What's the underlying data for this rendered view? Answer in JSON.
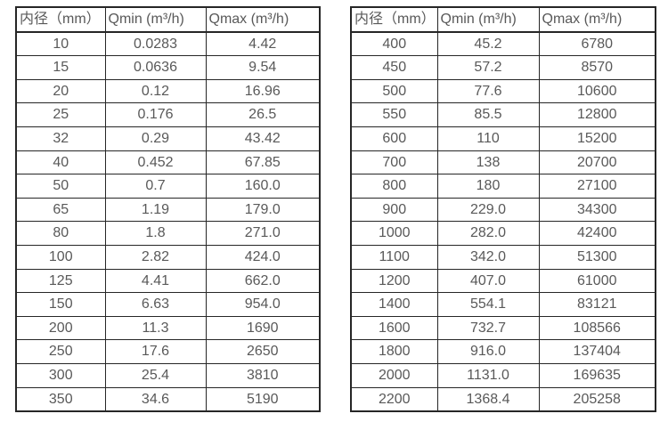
{
  "page": {
    "background_color": "#ffffff",
    "text_color": "#595959",
    "border_color": "#262626"
  },
  "tables": [
    {
      "name": "flow-spec-table-small-diameters",
      "headers": [
        "内径（mm）",
        "Qmin (m³/h)",
        "Qmax (m³/h)"
      ],
      "rows": [
        [
          "10",
          "0.0283",
          "4.42"
        ],
        [
          "15",
          "0.0636",
          "9.54"
        ],
        [
          "20",
          "0.12",
          "16.96"
        ],
        [
          "25",
          "0.176",
          "26.5"
        ],
        [
          "32",
          "0.29",
          "43.42"
        ],
        [
          "40",
          "0.452",
          "67.85"
        ],
        [
          "50",
          "0.7",
          "160.0"
        ],
        [
          "65",
          "1.19",
          "179.0"
        ],
        [
          "80",
          "1.8",
          "271.0"
        ],
        [
          "100",
          "2.82",
          "424.0"
        ],
        [
          "125",
          "4.41",
          "662.0"
        ],
        [
          "150",
          "6.63",
          "954.0"
        ],
        [
          "200",
          "11.3",
          "1690"
        ],
        [
          "250",
          "17.6",
          "2650"
        ],
        [
          "300",
          "25.4",
          "3810"
        ],
        [
          "350",
          "34.6",
          "5190"
        ]
      ]
    },
    {
      "name": "flow-spec-table-large-diameters",
      "headers": [
        "内径（mm）",
        "Qmin (m³/h)",
        "Qmax (m³/h)"
      ],
      "rows": [
        [
          "400",
          "45.2",
          "6780"
        ],
        [
          "450",
          "57.2",
          "8570"
        ],
        [
          "500",
          "77.6",
          "10600"
        ],
        [
          "550",
          "85.5",
          "12800"
        ],
        [
          "600",
          "110",
          "15200"
        ],
        [
          "700",
          "138",
          "20700"
        ],
        [
          "800",
          "180",
          "27100"
        ],
        [
          "900",
          "229.0",
          "34300"
        ],
        [
          "1000",
          "282.0",
          "42400"
        ],
        [
          "1100",
          "342.0",
          "51300"
        ],
        [
          "1200",
          "407.0",
          "61000"
        ],
        [
          "1400",
          "554.1",
          "83121"
        ],
        [
          "1600",
          "732.7",
          "108566"
        ],
        [
          "1800",
          "916.0",
          "137404"
        ],
        [
          "2000",
          "1131.0",
          "169635"
        ],
        [
          "2200",
          "1368.4",
          "205258"
        ]
      ]
    }
  ]
}
